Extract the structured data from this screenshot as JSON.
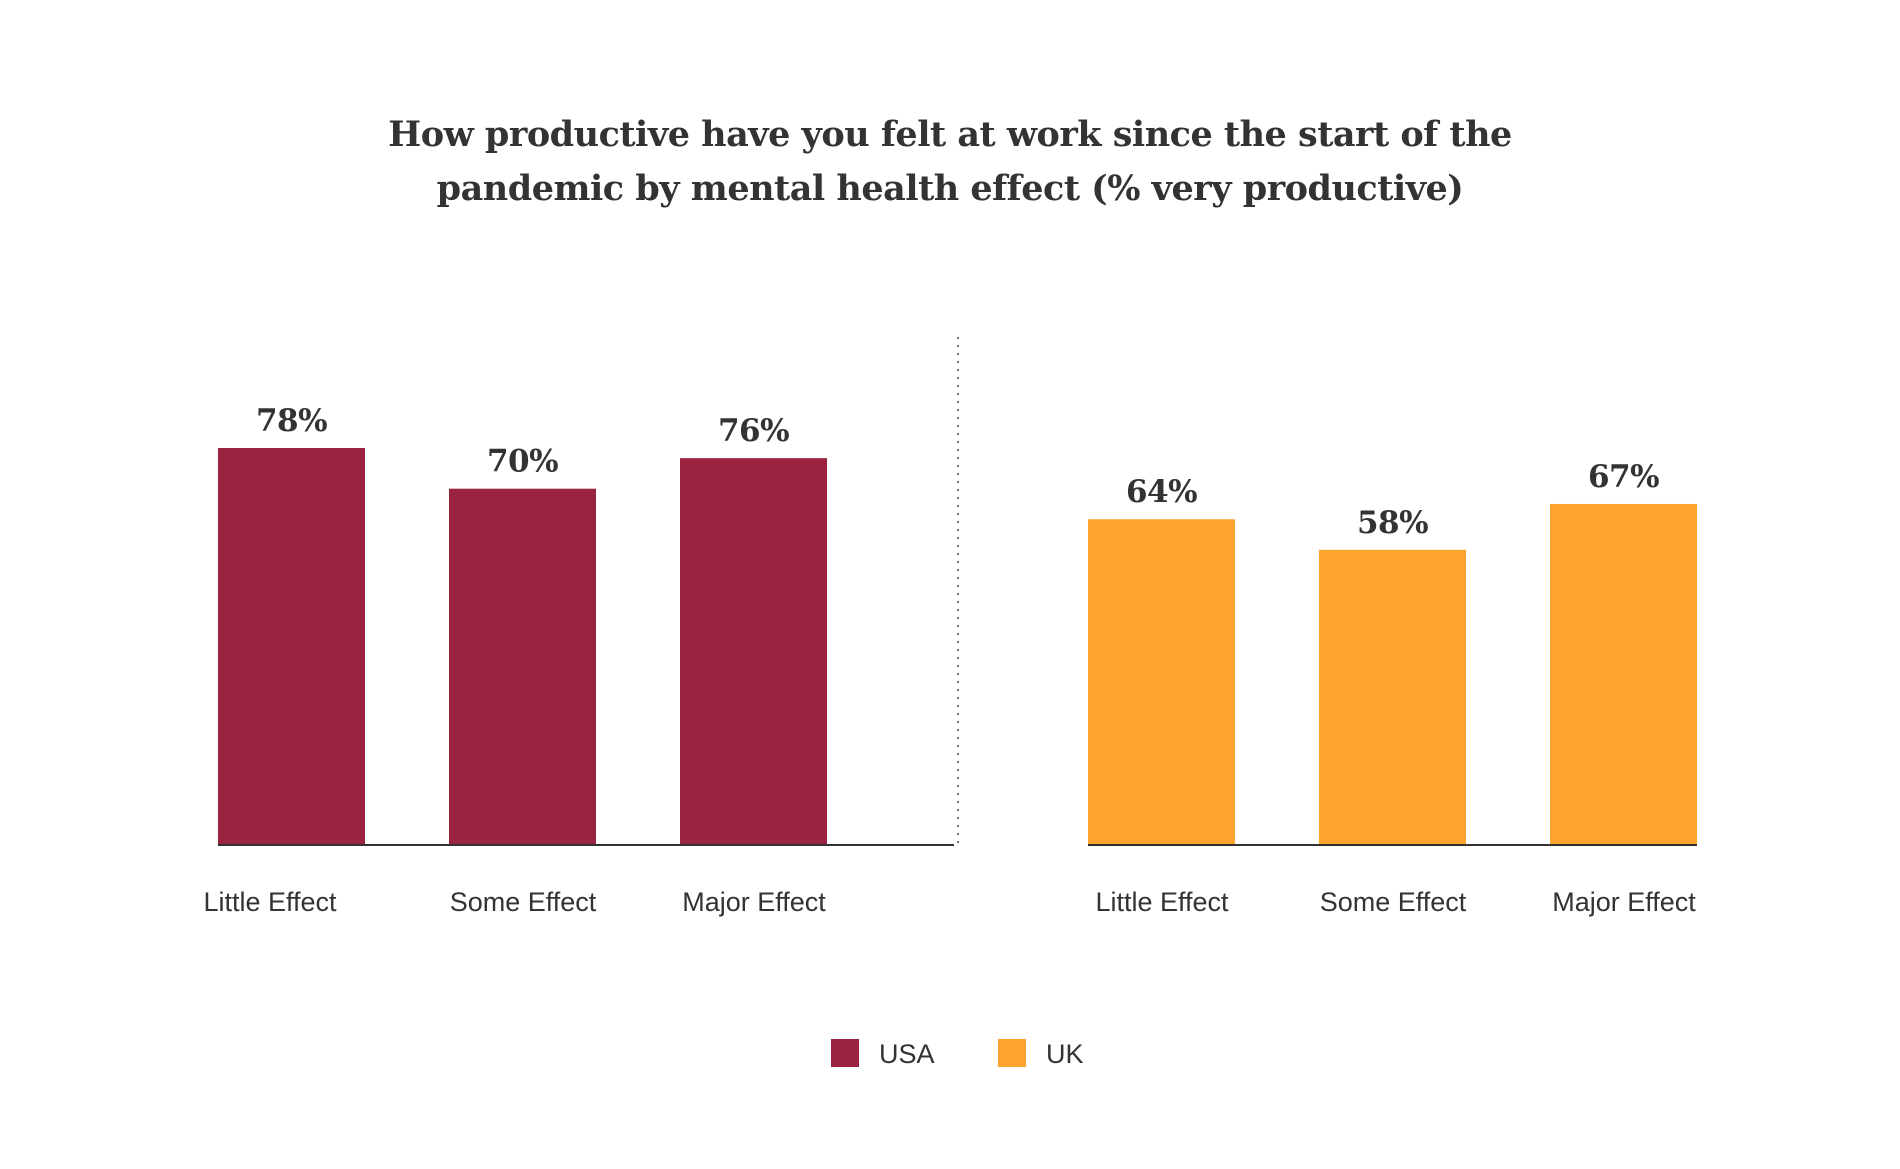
{
  "chart_data": {
    "type": "bar",
    "title_lines": [
      "How productive have you felt at work since the start of the",
      "pandemic by mental health effect (% very productive)"
    ],
    "categories": [
      "Little Effect",
      "Some Effect",
      "Major Effect"
    ],
    "series": [
      {
        "name": "USA",
        "color": "#9b2342",
        "values": [
          78,
          70,
          76
        ],
        "labels": [
          "78%",
          "70%",
          "76%"
        ]
      },
      {
        "name": "UK",
        "color": "#fca42d",
        "values": [
          64,
          58,
          67
        ],
        "labels": [
          "64%",
          "58%",
          "67%"
        ]
      }
    ],
    "ylim": [
      0,
      100
    ],
    "grid": false,
    "separator": "dotted",
    "legend_position": "bottom-center"
  }
}
